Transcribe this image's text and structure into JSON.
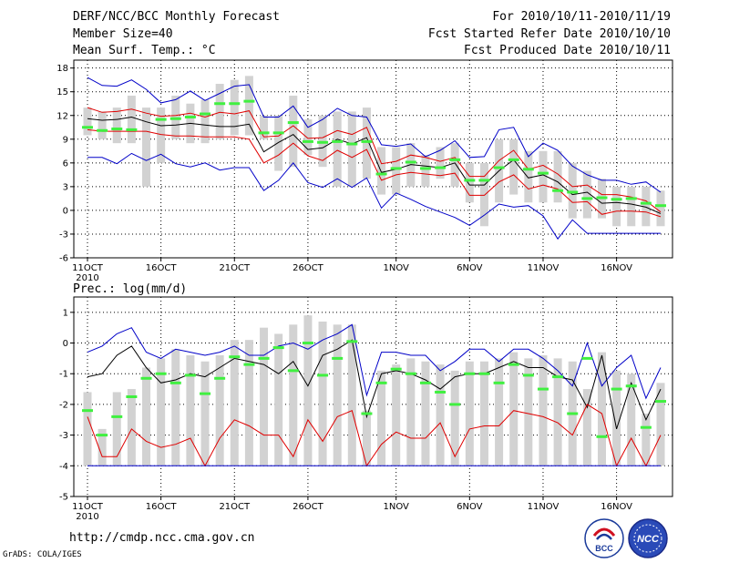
{
  "header": {
    "title": "DERF/NCC/BCC Monthly Forecast",
    "member": "Member Size=40",
    "variable": "Mean Surf. Temp.: °C",
    "period": "For 2010/10/11-2010/11/19",
    "fcst_started": "Fcst Started Refer Date 2010/10/10",
    "fcst_produced": "Fcst Produced Date 2010/10/11"
  },
  "footer": {
    "url": "http://cmdp.ncc.cma.gov.cn",
    "credit": "GrADS: COLA/IGES",
    "logo_left_text": "BCC",
    "logo_right_text": "NCC"
  },
  "colors": {
    "box": "#d2d2d2",
    "mean": "#000000",
    "spread": "#e00000",
    "extreme": "#0000c8",
    "obs": "#40f040",
    "grid": "#000000"
  },
  "chart_data": [
    {
      "type": "box-ensemble",
      "title": "Mean Surf. Temp.: °C",
      "x_start_day": 11,
      "x_tick_days": [
        11,
        16,
        21,
        26,
        32,
        37,
        42,
        47
      ],
      "x_tick_labels": [
        "11OCT",
        "16OCT",
        "21OCT",
        "26OCT",
        "1NOV",
        "6NOV",
        "11NOV",
        "16NOV"
      ],
      "x_year_label": "2010",
      "ylim": [
        -6,
        19
      ],
      "yticks": [
        -6,
        -3,
        0,
        3,
        6,
        9,
        12,
        15,
        18
      ],
      "days": [
        11,
        12,
        13,
        14,
        15,
        16,
        17,
        18,
        19,
        20,
        21,
        22,
        23,
        24,
        25,
        26,
        27,
        28,
        29,
        30,
        31,
        32,
        33,
        34,
        35,
        36,
        37,
        38,
        39,
        40,
        41,
        42,
        43,
        44,
        45,
        46,
        47,
        48,
        49,
        50
      ],
      "box_low": [
        9.5,
        9,
        8.5,
        8.5,
        3,
        6,
        9,
        8.5,
        8.5,
        9,
        9.5,
        9.5,
        9,
        5,
        5.5,
        7,
        5.5,
        3,
        3,
        4,
        2,
        2,
        3,
        3,
        4,
        3,
        1,
        -2,
        1,
        2,
        1,
        1,
        1,
        -1,
        -1,
        -1,
        -2,
        -2,
        -2,
        -2
      ],
      "box_high": [
        13,
        12.5,
        13,
        14.5,
        13,
        13,
        14.5,
        13.5,
        14,
        16,
        16.5,
        17,
        12,
        12,
        14.5,
        11.5,
        12,
        12.5,
        12.5,
        13,
        8,
        8,
        8.5,
        7,
        8,
        8.5,
        6,
        6,
        9,
        9,
        7.5,
        7.5,
        7.5,
        6,
        5,
        4,
        3,
        3,
        3,
        2.5
      ],
      "extreme_high": [
        16.8,
        15.8,
        15.7,
        16.5,
        15.3,
        13.6,
        14.0,
        15.1,
        13.9,
        14.8,
        15.7,
        15.9,
        11.8,
        11.8,
        13.2,
        10.5,
        11.5,
        12.9,
        12.0,
        11.8,
        8.3,
        8.1,
        8.4,
        6.8,
        7.6,
        8.8,
        6.7,
        6.8,
        10.2,
        10.5,
        6.8,
        8.5,
        7.6,
        5.6,
        4.5,
        3.8,
        3.8,
        3.3,
        3.6,
        2.3
      ],
      "spread_high": [
        13.0,
        12.4,
        12.5,
        12.8,
        12.3,
        11.9,
        12.0,
        12.3,
        11.8,
        12.4,
        12.2,
        12.6,
        9.3,
        9.4,
        10.7,
        9.1,
        9.2,
        10.1,
        9.6,
        10.5,
        5.9,
        6.2,
        7.0,
        6.7,
        6.2,
        6.7,
        4.3,
        4.3,
        6.3,
        7.6,
        5.2,
        5.7,
        4.6,
        3.0,
        3.2,
        2.0,
        2.0,
        1.7,
        1.2,
        -0.2
      ],
      "mean": [
        11.6,
        11.4,
        11.5,
        11.8,
        11.2,
        10.7,
        10.8,
        11.0,
        10.8,
        10.6,
        10.6,
        10.9,
        7.4,
        8.6,
        9.6,
        7.7,
        7.9,
        9.0,
        8.4,
        9.2,
        4.8,
        5.2,
        5.8,
        5.6,
        5.4,
        6.0,
        3.2,
        3.2,
        5.0,
        6.4,
        4.1,
        4.5,
        3.6,
        2.0,
        2.3,
        0.9,
        1.0,
        0.8,
        0.4,
        -0.4
      ],
      "spread_low": [
        10.2,
        10.0,
        10.0,
        10.0,
        10.0,
        9.6,
        9.4,
        9.4,
        9.3,
        9.3,
        9.3,
        9.0,
        6.0,
        7.0,
        8.5,
        6.9,
        6.3,
        7.6,
        6.7,
        7.7,
        3.8,
        4.5,
        4.8,
        4.6,
        4.4,
        4.7,
        1.9,
        1.9,
        3.6,
        4.5,
        2.7,
        3.2,
        2.7,
        1.0,
        1.1,
        -0.5,
        -0.1,
        -0.1,
        -0.2,
        -0.8
      ],
      "extreme_low": [
        6.7,
        6.7,
        5.9,
        7.2,
        6.3,
        7.1,
        5.9,
        5.5,
        6.0,
        5.1,
        5.4,
        5.4,
        2.5,
        3.8,
        6.0,
        3.5,
        2.9,
        4.0,
        2.9,
        4.1,
        0.3,
        2.2,
        1.4,
        0.5,
        -0.2,
        -0.9,
        -1.9,
        -0.6,
        0.8,
        0.4,
        0.6,
        -0.7,
        -3.6,
        -1.2,
        -2.9,
        -2.9,
        -2.9,
        -2.9,
        -2.9,
        -2.9
      ],
      "observed": [
        10.5,
        10.1,
        10.3,
        10.2,
        null,
        11.5,
        11.6,
        11.8,
        12.2,
        13.5,
        13.5,
        13.8,
        9.8,
        9.8,
        11.1,
        8.7,
        8.6,
        8.7,
        8.4,
        8.7,
        4.6,
        5.3,
        6.1,
        5.3,
        5.4,
        6.4,
        3.8,
        3.8,
        5.4,
        6.4,
        5.2,
        4.7,
        2.5,
        2.3,
        1.5,
        1.6,
        1.4,
        1.5,
        0.9,
        0.6
      ]
    },
    {
      "type": "box-ensemble",
      "title": "Prec.: log(mm/d)",
      "x_start_day": 11,
      "x_tick_days": [
        11,
        16,
        21,
        26,
        32,
        37,
        42,
        47
      ],
      "x_tick_labels": [
        "11OCT",
        "16OCT",
        "21OCT",
        "26OCT",
        "1NOV",
        "6NOV",
        "11NOV",
        "16NOV"
      ],
      "x_year_label": "2010",
      "ylim": [
        -5,
        1.5
      ],
      "yticks": [
        -5,
        -4,
        -3,
        -2,
        -1,
        0,
        1
      ],
      "days": [
        11,
        12,
        13,
        14,
        15,
        16,
        17,
        18,
        19,
        20,
        21,
        22,
        23,
        24,
        25,
        26,
        27,
        28,
        29,
        30,
        31,
        32,
        33,
        34,
        35,
        36,
        37,
        38,
        39,
        40,
        41,
        42,
        43,
        44,
        45,
        46,
        47,
        48,
        49,
        50
      ],
      "box_low": [
        -4,
        -4,
        -4,
        -4,
        -4,
        -4,
        -4,
        -4,
        -4,
        -4,
        -4,
        -4,
        -4,
        -4,
        -4,
        -4,
        -4,
        -4,
        -4,
        -4,
        -4,
        -4,
        -4,
        -4,
        -4,
        -4,
        -4,
        -4,
        -4,
        -4,
        -4,
        -4,
        -4,
        -4,
        -4,
        -4,
        -4,
        -4,
        -4,
        -4
      ],
      "box_high": [
        -1.6,
        -2.8,
        -1.6,
        -1.5,
        -0.8,
        -0.5,
        -0.2,
        -0.4,
        -0.6,
        -0.4,
        0.1,
        0.1,
        0.5,
        0.3,
        0.6,
        0.9,
        0.7,
        0.6,
        0.6,
        -2.2,
        -0.9,
        -0.7,
        -0.5,
        -0.6,
        -0.7,
        -0.9,
        -0.6,
        -0.6,
        -0.5,
        -0.3,
        -0.5,
        -0.4,
        -0.5,
        -0.6,
        -1.5,
        -0.3,
        -0.9,
        -1.0,
        -2.3,
        -1.3
      ],
      "extreme_high": [
        -0.3,
        -0.1,
        0.3,
        0.5,
        -0.3,
        -0.5,
        -0.2,
        -0.3,
        -0.4,
        -0.3,
        -0.1,
        -0.4,
        -0.4,
        -0.1,
        0.0,
        -0.2,
        0.1,
        0.3,
        0.6,
        -1.7,
        -0.3,
        -0.3,
        -0.4,
        -0.4,
        -0.9,
        -0.6,
        -0.2,
        -0.2,
        -0.6,
        -0.2,
        -0.2,
        -0.5,
        -0.9,
        -1.4,
        0.0,
        -1.4,
        -0.8,
        -0.4,
        -1.8,
        -0.8
      ],
      "mean": [
        -1.1,
        -1.0,
        -0.4,
        -0.1,
        -0.8,
        -1.3,
        -1.2,
        -1.0,
        -1.1,
        -0.8,
        -0.5,
        -0.6,
        -0.7,
        -1.0,
        -0.6,
        -1.4,
        -0.4,
        -0.2,
        0.1,
        -2.4,
        -1.0,
        -0.9,
        -1.0,
        -1.2,
        -1.5,
        -1.1,
        -1.0,
        -1.0,
        -0.8,
        -0.6,
        -0.8,
        -0.8,
        -1.1,
        -1.2,
        -2.1,
        -0.4,
        -2.8,
        -1.3,
        -2.5,
        -1.5
      ],
      "spread_low": [
        -2.4,
        -3.7,
        -3.7,
        -2.8,
        -3.2,
        -3.4,
        -3.3,
        -3.1,
        -4.0,
        -3.1,
        -2.5,
        -2.7,
        -3.0,
        -3.0,
        -3.7,
        -2.5,
        -3.2,
        -2.4,
        -2.2,
        -4.0,
        -3.3,
        -2.9,
        -3.1,
        -3.1,
        -2.6,
        -3.7,
        -2.8,
        -2.7,
        -2.7,
        -2.2,
        -2.3,
        -2.4,
        -2.6,
        -3.0,
        -2.0,
        -2.3,
        -4.0,
        -3.1,
        -4.0,
        -3.0
      ],
      "extreme_low": [
        -4,
        -4,
        -4,
        -4,
        -4,
        -4,
        -4,
        -4,
        -4,
        -4,
        -4,
        -4,
        -4,
        -4,
        -4,
        -4,
        -4,
        -4,
        -4,
        -4,
        -4,
        -4,
        -4,
        -4,
        -4,
        -4,
        -4,
        -4,
        -4,
        -4,
        -4,
        -4,
        -4,
        -4,
        -4,
        -4,
        -4,
        -4,
        -4,
        -4
      ],
      "observed": [
        -2.2,
        -3.0,
        -2.4,
        -1.75,
        -1.15,
        -1.0,
        -1.3,
        -1.05,
        -1.65,
        -1.15,
        -0.45,
        -0.7,
        -0.5,
        -0.15,
        -0.9,
        0.0,
        -1.05,
        -0.5,
        0.05,
        -2.3,
        -1.3,
        -0.85,
        -1.0,
        -1.3,
        -1.6,
        -2.0,
        -1.0,
        -1.0,
        -1.3,
        -0.7,
        -1.05,
        -1.5,
        -1.1,
        -2.3,
        -0.5,
        -3.05,
        -1.5,
        -1.4,
        -2.75,
        -1.9
      ]
    }
  ]
}
